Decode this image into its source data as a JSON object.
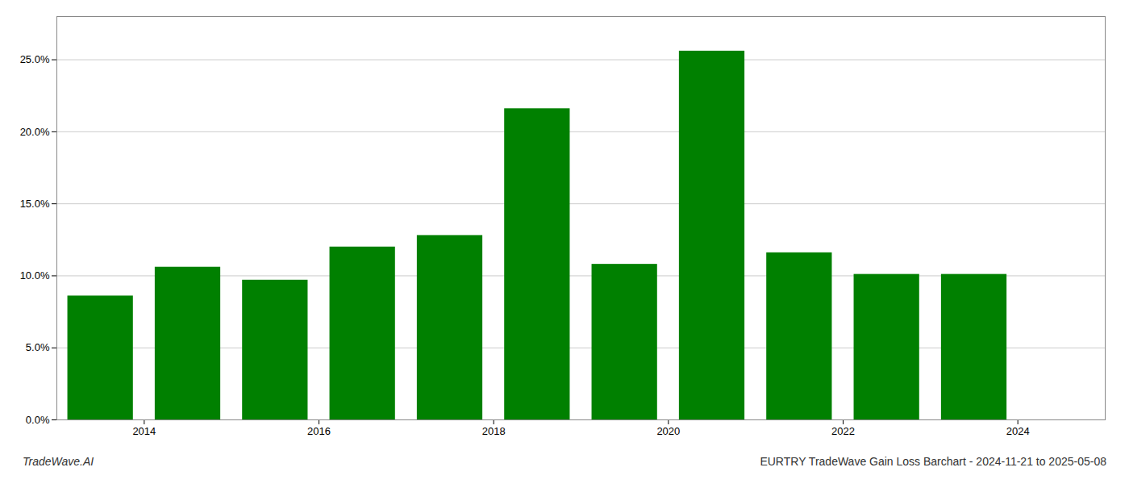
{
  "chart_data": {
    "type": "bar",
    "x": [
      2013.5,
      2014.5,
      2015.5,
      2016.5,
      2017.5,
      2018.5,
      2019.5,
      2020.5,
      2021.5,
      2022.5,
      2023.5
    ],
    "values": [
      0.086,
      0.106,
      0.097,
      0.12,
      0.128,
      0.216,
      0.108,
      0.256,
      0.116,
      0.101,
      0.101
    ],
    "color": "#008000",
    "xlim": [
      2013.0,
      2025.0
    ],
    "xticks": [
      2014,
      2016,
      2018,
      2020,
      2022,
      2024
    ],
    "ylim": [
      0,
      0.28
    ],
    "yticks": [
      {
        "value": 0.0,
        "label": "0.0%"
      },
      {
        "value": 0.05,
        "label": "5.0%"
      },
      {
        "value": 0.1,
        "label": "10.0%"
      },
      {
        "value": 0.15,
        "label": "15.0%"
      },
      {
        "value": 0.2,
        "label": "20.0%"
      },
      {
        "value": 0.25,
        "label": "25.0%"
      }
    ],
    "grid": true,
    "annotations": [
      "TradeWave.AI",
      "EURTRY TradeWave Gain Loss Barchart - 2024-11-21 to 2025-05-08"
    ]
  }
}
